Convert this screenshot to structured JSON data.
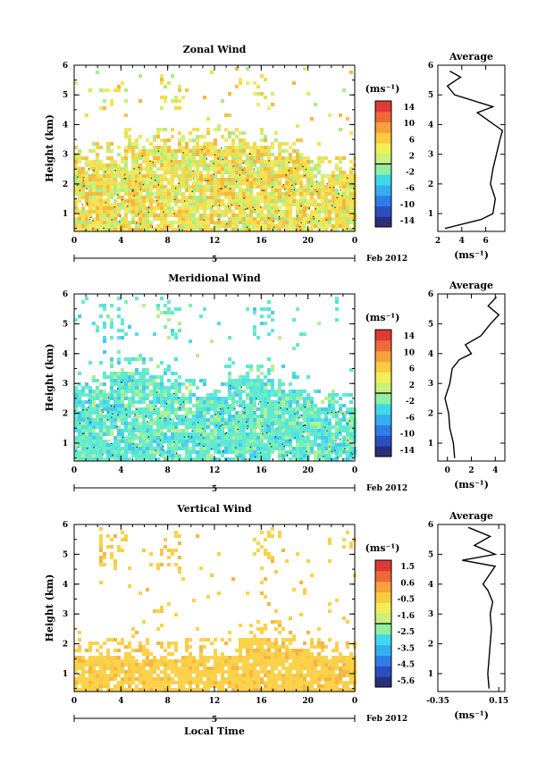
{
  "panels": [
    {
      "title": "Zonal Wind",
      "ylabel": "Height (km)",
      "y_ticks": [
        "1",
        "2",
        "3",
        "4",
        "5",
        "6"
      ],
      "x_ticks": [
        "0",
        "4",
        "8",
        "12",
        "16",
        "20",
        "0"
      ],
      "date_marker": "5",
      "date_label": "Feb 2012",
      "cbar_unit": "(ms⁻¹)",
      "cbar_ticks": [
        "14",
        "10",
        "6",
        "2",
        "-2",
        "-6",
        "-10",
        "-14"
      ],
      "avg_title": "Average",
      "avg_x_ticks": [
        "2",
        "4",
        "6"
      ],
      "avg_unit": "(ms⁻¹)",
      "avg_y_ticks": [
        "1",
        "2",
        "3",
        "4",
        "5",
        "6"
      ]
    },
    {
      "title": "Meridional Wind",
      "ylabel": "Height (km)",
      "y_ticks": [
        "1",
        "2",
        "3",
        "4",
        "5",
        "6"
      ],
      "x_ticks": [
        "0",
        "4",
        "8",
        "12",
        "16",
        "20",
        "0"
      ],
      "date_marker": "5",
      "date_label": "Feb 2012",
      "cbar_unit": "(ms⁻¹)",
      "cbar_ticks": [
        "14",
        "10",
        "6",
        "2",
        "-2",
        "-6",
        "-10",
        "-14"
      ],
      "avg_title": "Average",
      "avg_x_ticks": [
        "0",
        "2",
        "4"
      ],
      "avg_unit": "(ms⁻¹)",
      "avg_y_ticks": [
        "1",
        "2",
        "3",
        "4",
        "5",
        "6"
      ]
    },
    {
      "title": "Vertical Wind",
      "ylabel": "Height (km)",
      "y_ticks": [
        "1",
        "2",
        "3",
        "4",
        "5",
        "6"
      ],
      "x_ticks": [
        "0",
        "4",
        "8",
        "12",
        "16",
        "20",
        "0"
      ],
      "date_marker": "5",
      "date_label": "Feb 2012",
      "cbar_unit": "(ms⁻¹)",
      "cbar_ticks": [
        "1.5",
        "0.6",
        "-0.5",
        "-1.6",
        "-2.5",
        "-3.5",
        "-4.5",
        "-5.6"
      ],
      "avg_title": "Average",
      "avg_x_ticks": [
        "-0.35",
        "0.15"
      ],
      "avg_unit": "(ms⁻¹)",
      "avg_y_ticks": [
        "1",
        "2",
        "3",
        "4",
        "5",
        "6"
      ],
      "xlabel": "Local Time"
    }
  ],
  "colors": {
    "colormap": [
      "#2b2f7a",
      "#2c4fc0",
      "#2f7ee8",
      "#35aef0",
      "#3fd8ea",
      "#8ef0a0",
      "#c8f07a",
      "#f2ee58",
      "#f8cc3c",
      "#f5a23a",
      "#ee6a3a",
      "#e03a34"
    ],
    "zonal_main": "#f5dc4a",
    "meridional_main": "#5fe8d2",
    "vertical_main": "#fbd24a"
  },
  "chart_data": [
    {
      "type": "heatmap",
      "title": "Zonal Wind",
      "xlabel": "",
      "ylabel": "Height (km)",
      "xlim": [
        0,
        24
      ],
      "ylim": [
        0.4,
        6
      ],
      "colorbar": {
        "min": -14,
        "max": 14,
        "unit": "ms-1"
      },
      "profile": {
        "title": "Average",
        "xlim": [
          2,
          7.6
        ],
        "height": [
          0.5,
          0.8,
          1.0,
          1.5,
          2.0,
          2.5,
          3.0,
          3.5,
          3.8,
          4.2,
          4.4,
          4.6,
          5.0,
          5.3,
          5.6,
          5.8
        ],
        "value": [
          2.6,
          5.6,
          6.6,
          6.8,
          6.4,
          6.6,
          6.9,
          7.2,
          7.4,
          6.0,
          5.3,
          6.6,
          3.4,
          2.8,
          3.9,
          3.0
        ]
      }
    },
    {
      "type": "heatmap",
      "title": "Meridional Wind",
      "xlabel": "",
      "ylabel": "Height (km)",
      "xlim": [
        0,
        24
      ],
      "ylim": [
        0.4,
        6
      ],
      "colorbar": {
        "min": -14,
        "max": 14,
        "unit": "ms-1"
      },
      "profile": {
        "title": "Average",
        "xlim": [
          -0.8,
          4.8
        ],
        "height": [
          0.5,
          1.0,
          1.5,
          2.0,
          2.5,
          3.0,
          3.5,
          3.8,
          4.0,
          4.3,
          4.6,
          5.0,
          5.3,
          5.6,
          5.9
        ],
        "value": [
          0.6,
          0.5,
          0.2,
          0.1,
          -0.2,
          0.2,
          0.4,
          1.0,
          2.0,
          1.5,
          2.8,
          3.6,
          4.3,
          3.4,
          4.1
        ]
      }
    },
    {
      "type": "heatmap",
      "title": "Vertical Wind",
      "xlabel": "Local Time",
      "ylabel": "Height (km)",
      "xlim": [
        0,
        24
      ],
      "ylim": [
        0.4,
        6
      ],
      "colorbar": {
        "min": -5.6,
        "max": 1.5,
        "unit": "ms-1"
      },
      "profile": {
        "title": "Average",
        "xlim": [
          -0.35,
          0.2
        ],
        "height": [
          0.5,
          1.0,
          1.5,
          2.0,
          2.5,
          3.0,
          3.4,
          3.8,
          4.0,
          4.6,
          4.8,
          5.0,
          5.3,
          5.6,
          5.9
        ],
        "value": [
          0.07,
          0.06,
          0.07,
          0.08,
          0.09,
          0.08,
          0.1,
          0.06,
          0.02,
          0.12,
          -0.15,
          0.12,
          -0.05,
          0.08,
          -0.1
        ]
      }
    }
  ]
}
